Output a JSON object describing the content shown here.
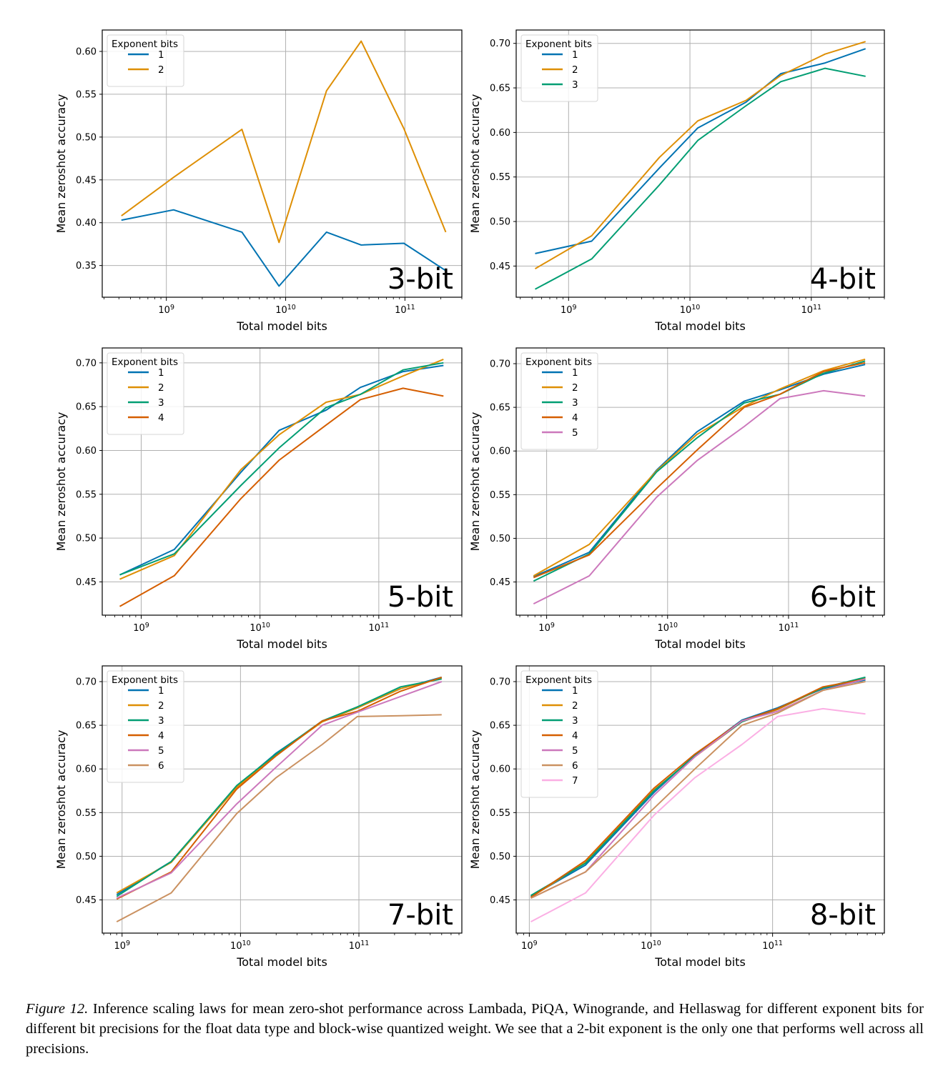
{
  "caption": {
    "figure_number": "Figure 12.",
    "text": " Inference scaling laws for mean zero-shot performance across Lambada, PiQA, Winogrande, and Hellaswag for different exponent bits for different bit precisions for the float data type and block-wise quantized weight. We see that a 2-bit exponent is the only one that performs well across all precisions."
  },
  "series_colors": {
    "1": "#0173b2",
    "2": "#de8f05",
    "3": "#029e73",
    "4": "#d55e00",
    "5": "#cc78bc",
    "6": "#ca9161",
    "7": "#fbafe4"
  },
  "chart_data": [
    {
      "type": "line",
      "panel_label": "3-bit",
      "xlabel": "Total model bits",
      "ylabel": "Mean zeroshot accuracy",
      "xscale": "log",
      "xlim": [
        290000000.0,
        300000000000.0
      ],
      "ylim": [
        0.313,
        0.625
      ],
      "yticks": [
        0.35,
        0.4,
        0.45,
        0.5,
        0.55,
        0.6
      ],
      "ytick_labels": [
        "0.35",
        "0.40",
        "0.45",
        "0.50",
        "0.55",
        "0.60"
      ],
      "xticks": [
        1000000000.0,
        10000000000.0,
        100000000000.0
      ],
      "xtick_labels": [
        "10^9",
        "10^10",
        "10^11"
      ],
      "grid": true,
      "legend": {
        "title": "Exponent bits",
        "placement": "upper-left"
      },
      "x": [
        420000000.0,
        1150000000.0,
        4300000000.0,
        8800000000.0,
        22000000000.0,
        43000000000.0,
        98000000000.0,
        220000000000.0
      ],
      "series": [
        {
          "name": "1",
          "values": [
            0.403,
            0.415,
            0.389,
            0.326,
            0.389,
            0.374,
            0.376,
            0.344
          ]
        },
        {
          "name": "2",
          "values": [
            0.408,
            0.453,
            0.509,
            0.377,
            0.554,
            0.612,
            0.51,
            0.389
          ]
        }
      ]
    },
    {
      "type": "line",
      "panel_label": "4-bit",
      "xlabel": "Total model bits",
      "ylabel": "Mean zeroshot accuracy",
      "xscale": "log",
      "xlim": [
        370000000.0,
        400000000000.0
      ],
      "ylim": [
        0.415,
        0.715
      ],
      "yticks": [
        0.45,
        0.5,
        0.55,
        0.6,
        0.65,
        0.7
      ],
      "ytick_labels": [
        "0.45",
        "0.50",
        "0.55",
        "0.60",
        "0.65",
        "0.70"
      ],
      "xticks": [
        1000000000.0,
        10000000000.0,
        100000000000.0
      ],
      "xtick_labels": [
        "10^9",
        "10^10",
        "10^11"
      ],
      "grid": true,
      "legend": {
        "title": "Exponent bits",
        "placement": "upper-left"
      },
      "x": [
        530000000.0,
        1550000000.0,
        5600000000.0,
        11600000000.0,
        29000000000.0,
        56000000000.0,
        130000000000.0,
        280000000000.0
      ],
      "series": [
        {
          "name": "1",
          "values": [
            0.464,
            0.478,
            0.56,
            0.605,
            0.634,
            0.666,
            0.678,
            0.694
          ]
        },
        {
          "name": "2",
          "values": [
            0.447,
            0.484,
            0.572,
            0.613,
            0.636,
            0.664,
            0.688,
            0.702
          ]
        },
        {
          "name": "3",
          "values": [
            0.424,
            0.458,
            0.541,
            0.591,
            0.63,
            0.657,
            0.672,
            0.663
          ]
        }
      ]
    },
    {
      "type": "line",
      "panel_label": "5-bit",
      "xlabel": "Total model bits",
      "ylabel": "Mean zeroshot accuracy",
      "xscale": "log",
      "xlim": [
        470000000.0,
        500000000000.0
      ],
      "ylim": [
        0.412,
        0.717
      ],
      "yticks": [
        0.45,
        0.5,
        0.55,
        0.6,
        0.65,
        0.7
      ],
      "ytick_labels": [
        "0.45",
        "0.50",
        "0.55",
        "0.60",
        "0.65",
        "0.70"
      ],
      "xticks": [
        1000000000.0,
        10000000000.0,
        100000000000.0
      ],
      "xtick_labels": [
        "10^9",
        "10^10",
        "10^11"
      ],
      "grid": true,
      "legend": {
        "title": "Exponent bits",
        "placement": "upper-left"
      },
      "x": [
        660000000.0,
        1900000000.0,
        6900000000.0,
        14500000000.0,
        36000000000.0,
        70000000000.0,
        160000000000.0,
        350000000000.0
      ],
      "series": [
        {
          "name": "1",
          "values": [
            0.458,
            0.487,
            0.575,
            0.623,
            0.646,
            0.672,
            0.69,
            0.697
          ]
        },
        {
          "name": "2",
          "values": [
            0.453,
            0.48,
            0.578,
            0.618,
            0.655,
            0.664,
            0.685,
            0.704
          ]
        },
        {
          "name": "3",
          "values": [
            0.458,
            0.482,
            0.56,
            0.603,
            0.649,
            0.664,
            0.692,
            0.7
          ]
        },
        {
          "name": "4",
          "values": [
            0.422,
            0.457,
            0.545,
            0.589,
            0.629,
            0.658,
            0.671,
            0.662
          ]
        }
      ]
    },
    {
      "type": "line",
      "panel_label": "6-bit",
      "xlabel": "Total model bits",
      "ylabel": "Mean zeroshot accuracy",
      "xscale": "log",
      "xlim": [
        560000000.0,
        620000000000.0
      ],
      "ylim": [
        0.412,
        0.718
      ],
      "yticks": [
        0.45,
        0.5,
        0.55,
        0.6,
        0.65,
        0.7
      ],
      "ytick_labels": [
        "0.45",
        "0.50",
        "0.55",
        "0.60",
        "0.65",
        "0.70"
      ],
      "xticks": [
        1000000000.0,
        10000000000.0,
        100000000000.0
      ],
      "xtick_labels": [
        "10^9",
        "10^10",
        "10^11"
      ],
      "grid": true,
      "legend": {
        "title": "Exponent bits",
        "placement": "upper-left"
      },
      "x": [
        780000000.0,
        2250000000.0,
        8100000000.0,
        17500000000.0,
        43000000000.0,
        85000000000.0,
        195000000000.0,
        430000000000.0
      ],
      "series": [
        {
          "name": "1",
          "values": [
            0.456,
            0.484,
            0.578,
            0.622,
            0.657,
            0.67,
            0.688,
            0.699
          ]
        },
        {
          "name": "2",
          "values": [
            0.457,
            0.493,
            0.577,
            0.619,
            0.651,
            0.671,
            0.692,
            0.705
          ]
        },
        {
          "name": "3",
          "values": [
            0.451,
            0.482,
            0.576,
            0.615,
            0.655,
            0.665,
            0.689,
            0.703
          ]
        },
        {
          "name": "4",
          "values": [
            0.455,
            0.481,
            0.557,
            0.601,
            0.65,
            0.665,
            0.691,
            0.701
          ]
        },
        {
          "name": "5",
          "values": [
            0.425,
            0.457,
            0.547,
            0.589,
            0.628,
            0.66,
            0.669,
            0.663
          ]
        }
      ]
    },
    {
      "type": "line",
      "panel_label": "7-bit",
      "xlabel": "Total model bits",
      "ylabel": "Mean zeroshot accuracy",
      "xscale": "log",
      "xlim": [
        680000000.0,
        740000000000.0
      ],
      "ylim": [
        0.412,
        0.718
      ],
      "yticks": [
        0.45,
        0.5,
        0.55,
        0.6,
        0.65,
        0.7
      ],
      "ytick_labels": [
        "0.45",
        "0.50",
        "0.55",
        "0.60",
        "0.65",
        "0.70"
      ],
      "xticks": [
        1000000000.0,
        10000000000.0,
        100000000000.0
      ],
      "xtick_labels": [
        "10^9",
        "10^10",
        "10^11"
      ],
      "grid": true,
      "legend": {
        "title": "Exponent bits",
        "placement": "upper-left"
      },
      "x": [
        900000000.0,
        2600000000.0,
        9300000000.0,
        20000000000.0,
        49000000000.0,
        97000000000.0,
        225000000000.0,
        500000000000.0
      ],
      "series": [
        {
          "name": "1",
          "values": [
            0.456,
            0.494,
            0.58,
            0.618,
            0.654,
            0.67,
            0.692,
            0.705
          ]
        },
        {
          "name": "2",
          "values": [
            0.458,
            0.493,
            0.579,
            0.616,
            0.654,
            0.67,
            0.692,
            0.704
          ]
        },
        {
          "name": "3",
          "values": [
            0.454,
            0.494,
            0.581,
            0.617,
            0.655,
            0.671,
            0.694,
            0.703
          ]
        },
        {
          "name": "4",
          "values": [
            0.451,
            0.482,
            0.577,
            0.615,
            0.655,
            0.666,
            0.689,
            0.705
          ]
        },
        {
          "name": "5",
          "values": [
            0.452,
            0.481,
            0.56,
            0.602,
            0.65,
            0.665,
            0.683,
            0.7
          ]
        },
        {
          "name": "6",
          "values": [
            0.425,
            0.458,
            0.549,
            0.59,
            0.628,
            0.66,
            0.661,
            0.662
          ]
        }
      ]
    },
    {
      "type": "line",
      "panel_label": "8-bit",
      "xlabel": "Total model bits",
      "ylabel": "Mean zeroshot accuracy",
      "xscale": "log",
      "xlim": [
        780000000.0,
        830000000000.0
      ],
      "ylim": [
        0.412,
        0.718
      ],
      "yticks": [
        0.45,
        0.5,
        0.55,
        0.6,
        0.65,
        0.7
      ],
      "ytick_labels": [
        "0.45",
        "0.50",
        "0.55",
        "0.60",
        "0.65",
        "0.70"
      ],
      "xticks": [
        1000000000.0,
        10000000000.0,
        100000000000.0
      ],
      "xtick_labels": [
        "10^9",
        "10^10",
        "10^11"
      ],
      "grid": true,
      "legend": {
        "title": "Exponent bits",
        "placement": "upper-left"
      },
      "x": [
        1030000000.0,
        2900000000.0,
        10600000000.0,
        23000000000.0,
        56000000000.0,
        110000000000.0,
        260000000000.0,
        580000000000.0
      ],
      "series": [
        {
          "name": "1",
          "values": [
            0.454,
            0.49,
            0.573,
            0.616,
            0.656,
            0.67,
            0.692,
            0.702
          ]
        },
        {
          "name": "2",
          "values": [
            0.453,
            0.493,
            0.576,
            0.614,
            0.654,
            0.668,
            0.693,
            0.704
          ]
        },
        {
          "name": "3",
          "values": [
            0.455,
            0.492,
            0.575,
            0.615,
            0.654,
            0.669,
            0.693,
            0.705
          ]
        },
        {
          "name": "4",
          "values": [
            0.453,
            0.495,
            0.578,
            0.617,
            0.655,
            0.669,
            0.694,
            0.703
          ]
        },
        {
          "name": "5",
          "values": [
            0.452,
            0.482,
            0.57,
            0.614,
            0.655,
            0.666,
            0.69,
            0.703
          ]
        },
        {
          "name": "6",
          "values": [
            0.452,
            0.482,
            0.555,
            0.6,
            0.65,
            0.664,
            0.69,
            0.7
          ]
        },
        {
          "name": "7",
          "values": [
            0.425,
            0.458,
            0.547,
            0.59,
            0.628,
            0.66,
            0.669,
            0.663
          ]
        }
      ]
    }
  ]
}
